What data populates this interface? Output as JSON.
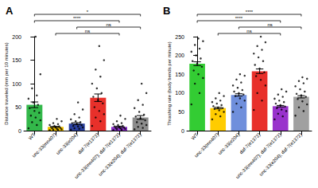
{
  "chart_data": [
    {
      "type": "bar",
      "title": "A",
      "y_label": "Distance traveled (mm per 10 minutes)",
      "categories": [
        "WT",
        "unc-33(mn407)",
        "unc-33(e204)",
        "daf-7(e1372)",
        "unc-33(mn407); daf-7(e1372)",
        "unc-33(e204); daf-7(e1372)"
      ],
      "values": [
        55,
        8,
        15,
        70,
        8,
        28
      ],
      "errors": [
        6,
        1,
        2,
        8,
        1.5,
        4
      ],
      "points": [
        [
          5,
          12,
          18,
          22,
          28,
          32,
          38,
          42,
          48,
          55,
          60,
          68,
          75,
          90,
          120,
          200
        ],
        [
          1,
          2,
          2,
          3,
          4,
          5,
          6,
          7,
          8,
          9,
          10,
          12,
          14,
          16,
          20,
          25
        ],
        [
          2,
          4,
          5,
          7,
          9,
          10,
          12,
          14,
          16,
          18,
          20,
          24,
          28,
          35,
          45,
          60
        ],
        [
          10,
          20,
          28,
          35,
          42,
          50,
          58,
          65,
          72,
          80,
          90,
          100,
          115,
          130,
          150,
          180
        ],
        [
          1,
          2,
          3,
          4,
          5,
          6,
          7,
          8,
          9,
          10,
          12,
          14,
          16,
          20,
          25,
          32
        ],
        [
          3,
          6,
          8,
          12,
          15,
          18,
          22,
          26,
          30,
          34,
          40,
          48,
          55,
          65,
          80,
          100
        ]
      ],
      "colors": [
        "#33b84a",
        "#f2c200",
        "#2a3f9e",
        "#e8302a",
        "#8b2fc9",
        "#8c8c8c"
      ],
      "ylim": [
        0,
        200
      ],
      "yticks": [
        0,
        50,
        100,
        150,
        200
      ],
      "grid": false,
      "comparisons": [
        {
          "from": "unc-33(mn407)",
          "to": "unc-33(mn407); daf-7(e1372)",
          "label": "ns"
        },
        {
          "from": "unc-33(e204)",
          "to": "unc-33(e204); daf-7(e1372)",
          "label": "ns"
        },
        {
          "from": "WT",
          "to": "unc-33(mn407); daf-7(e1372)",
          "label": "****"
        },
        {
          "from": "WT",
          "to": "unc-33(e204); daf-7(e1372)",
          "label": "*"
        }
      ]
    },
    {
      "type": "bar",
      "title": "B",
      "y_label": "Thrashing rate (body bends per minute)",
      "categories": [
        "WT",
        "unc-33(mn407)",
        "unc-33(e204)",
        "daf-7(e1372)",
        "unc-33(mn407); daf-7(e1372)",
        "unc-33(e204); daf-7(e1372)"
      ],
      "values": [
        178,
        60,
        95,
        158,
        65,
        90
      ],
      "errors": [
        5,
        2,
        3,
        6,
        2,
        3
      ],
      "points": [
        [
          70,
          100,
          125,
          140,
          150,
          160,
          170,
          178,
          185,
          192,
          200,
          210,
          218,
          228,
          238,
          245
        ],
        [
          30,
          38,
          44,
          50,
          54,
          58,
          60,
          62,
          65,
          68,
          72,
          76,
          80,
          86,
          92,
          100
        ],
        [
          50,
          62,
          72,
          80,
          86,
          92,
          96,
          100,
          104,
          108,
          114,
          120,
          128,
          136,
          146,
          150
        ],
        [
          55,
          80,
          100,
          120,
          135,
          145,
          155,
          165,
          175,
          185,
          195,
          205,
          215,
          225,
          235,
          250
        ],
        [
          30,
          38,
          45,
          52,
          56,
          60,
          64,
          68,
          72,
          76,
          80,
          85,
          90,
          96,
          104,
          110
        ],
        [
          40,
          52,
          62,
          70,
          78,
          84,
          90,
          94,
          98,
          104,
          110,
          118,
          126,
          132,
          138,
          142
        ]
      ],
      "colors": [
        "#33cc33",
        "#ffcc00",
        "#6f8fdc",
        "#e8302a",
        "#9933cc",
        "#a0a0a0"
      ],
      "ylim": [
        0,
        250
      ],
      "yticks": [
        0,
        50,
        100,
        150,
        200,
        250
      ],
      "grid": false,
      "comparisons": [
        {
          "from": "unc-33(mn407)",
          "to": "unc-33(mn407); daf-7(e1372)",
          "label": "ns"
        },
        {
          "from": "unc-33(e204)",
          "to": "unc-33(e204); daf-7(e1372)",
          "label": "ns"
        },
        {
          "from": "WT",
          "to": "unc-33(mn407); daf-7(e1372)",
          "label": "****"
        },
        {
          "from": "WT",
          "to": "unc-33(e204); daf-7(e1372)",
          "label": "****"
        }
      ]
    }
  ]
}
